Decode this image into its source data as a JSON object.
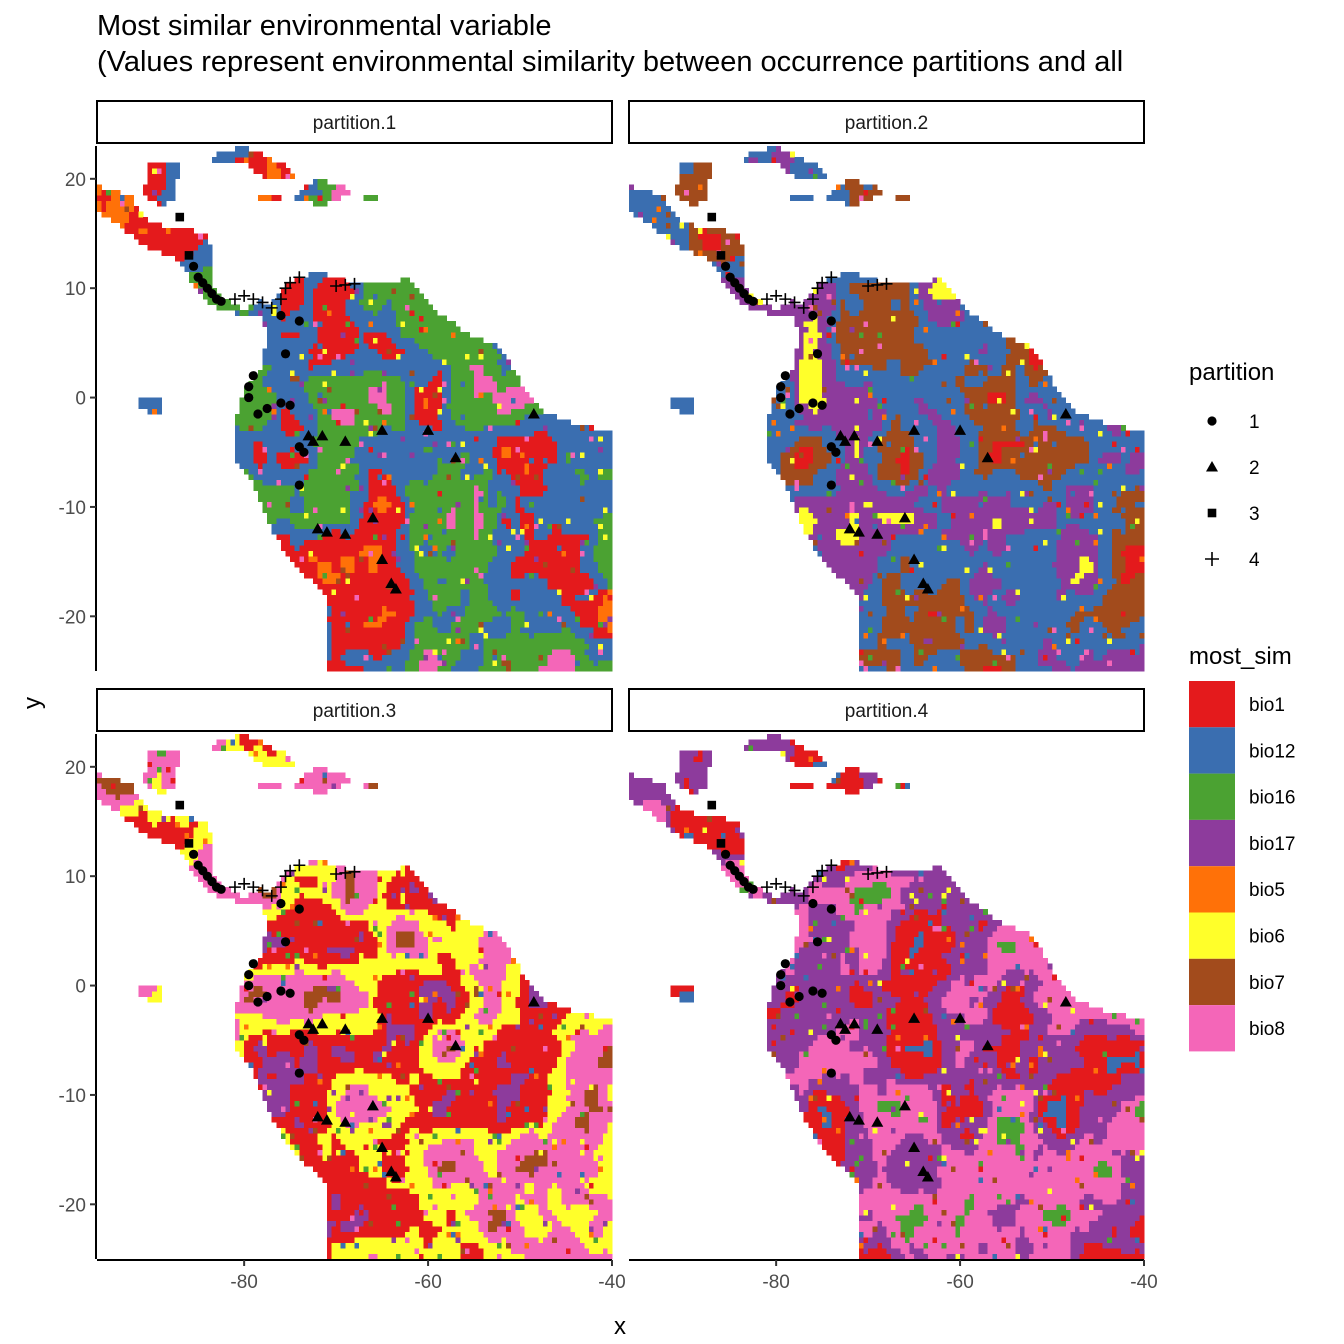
{
  "chart_data": {
    "type": "heatmap",
    "title": "Most similar environmental variable",
    "subtitle": "(Values represent environmental similarity between occurrence partitions and all",
    "xlabel": "x",
    "ylabel": "y",
    "xlim": [
      -96,
      -40
    ],
    "ylim": [
      -25,
      23
    ],
    "x_ticks": [
      -80,
      -60,
      -40
    ],
    "y_ticks": [
      20,
      10,
      0,
      -10,
      -20
    ],
    "facets": [
      "partition.1",
      "partition.2",
      "partition.3",
      "partition.4"
    ],
    "dominant_variables": [
      [
        "bio8",
        "bio16",
        "bio12",
        "bio1",
        "bio5"
      ],
      [
        "bio1",
        "bio7",
        "bio12",
        "bio17",
        "bio6"
      ],
      [
        "bio17",
        "bio1",
        "bio6",
        "bio8",
        "bio7"
      ],
      [
        "bio12",
        "bio1",
        "bio17",
        "bio8",
        "bio16"
      ]
    ],
    "legend_placement": "right",
    "legend_shape": {
      "title": "partition",
      "entries": [
        {
          "label": "1",
          "shape": "circle"
        },
        {
          "label": "2",
          "shape": "triangle"
        },
        {
          "label": "3",
          "shape": "square"
        },
        {
          "label": "4",
          "shape": "plus"
        }
      ]
    },
    "legend_fill": {
      "title": "most_sim",
      "entries": [
        {
          "label": "bio1",
          "color": "#e41a1c"
        },
        {
          "label": "bio12",
          "color": "#3a6eb0"
        },
        {
          "label": "bio16",
          "color": "#4ba232"
        },
        {
          "label": "bio17",
          "color": "#8d3b9c"
        },
        {
          "label": "bio5",
          "color": "#ff7108"
        },
        {
          "label": "bio6",
          "color": "#ffff2a"
        },
        {
          "label": "bio7",
          "color": "#a24b1c"
        },
        {
          "label": "bio8",
          "color": "#f466b8"
        }
      ]
    },
    "points": {
      "partition_1": [
        [
          -85.5,
          12
        ],
        [
          -85,
          11
        ],
        [
          -84.5,
          10.5
        ],
        [
          -84,
          10
        ],
        [
          -83.5,
          9.5
        ],
        [
          -83,
          9
        ],
        [
          -82.5,
          8.8
        ],
        [
          -76,
          7.5
        ],
        [
          -75.5,
          4
        ],
        [
          -74,
          7
        ],
        [
          -79,
          2
        ],
        [
          -79.5,
          1
        ],
        [
          -79.5,
          0
        ],
        [
          -78.5,
          -1.5
        ],
        [
          -77.5,
          -1
        ],
        [
          -76,
          -0.5
        ],
        [
          -75,
          -0.7
        ],
        [
          -74,
          -4.5
        ],
        [
          -73.5,
          -5
        ],
        [
          -74,
          -8
        ]
      ],
      "partition_2": [
        [
          -73,
          -3.5
        ],
        [
          -72.5,
          -4
        ],
        [
          -71.5,
          -3.5
        ],
        [
          -69,
          -4
        ],
        [
          -65,
          -3
        ],
        [
          -60,
          -3
        ],
        [
          -57,
          -5.5
        ],
        [
          -48.5,
          -1.5
        ],
        [
          -72,
          -12
        ],
        [
          -71,
          -12.3
        ],
        [
          -69,
          -12.5
        ],
        [
          -66,
          -11
        ],
        [
          -65,
          -14.8
        ],
        [
          -64,
          -17
        ],
        [
          -63.5,
          -17.5
        ]
      ],
      "partition_3": [
        [
          -87,
          16.5
        ],
        [
          -86,
          13
        ]
      ],
      "partition_4": [
        [
          -81,
          9
        ],
        [
          -80,
          9.3
        ],
        [
          -79,
          9
        ],
        [
          -78,
          8.7
        ],
        [
          -77,
          8.2
        ],
        [
          -76,
          9
        ],
        [
          -75.5,
          10
        ],
        [
          -75,
          10.5
        ],
        [
          -74,
          11
        ],
        [
          -70,
          10.2
        ],
        [
          -69,
          10.3
        ],
        [
          -68,
          10.4
        ]
      ]
    }
  }
}
